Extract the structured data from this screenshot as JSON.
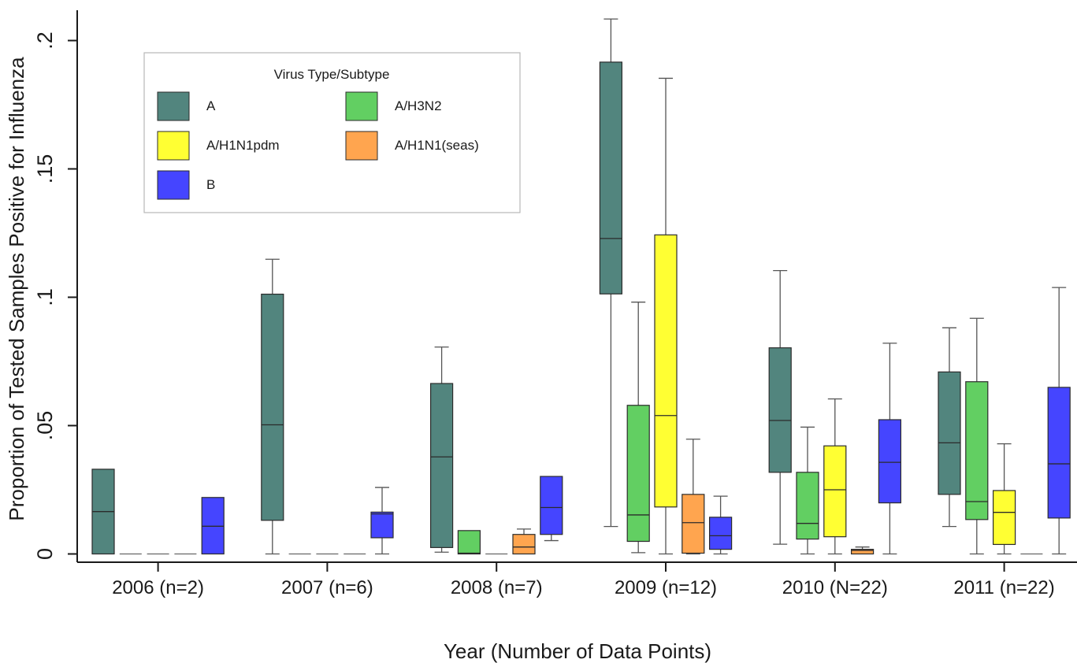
{
  "chart_data": {
    "type": "box",
    "xlabel": "Year (Number of Data Points)",
    "ylabel": "Proportion of Tested Samples Positive for Influenza",
    "ylim": [
      0,
      0.21
    ],
    "yticks": [
      0,
      0.05,
      0.1,
      0.15,
      0.2
    ],
    "ytick_labels": [
      "0",
      ".05",
      ".1",
      ".15",
      ".2"
    ],
    "grid": false,
    "legend": {
      "title": "Virus Type/Subtype",
      "placement": "top-left inside",
      "columns": 2
    },
    "categories": [
      "2006 (n=2)",
      "2007 (n=6)",
      "2008 (n=7)",
      "2009 (n=12)",
      "2010 (N=22)",
      "2011 (n=22)"
    ],
    "series": [
      {
        "name": "A",
        "color": "#52857e",
        "boxes": [
          {
            "low": 0,
            "q1": 0,
            "median": 0.0165,
            "q3": 0.033,
            "high": 0.033
          },
          {
            "low": 0,
            "q1": 0.0131,
            "median": 0.0503,
            "q3": 0.1012,
            "high": 0.1148
          },
          {
            "low": 0.0007,
            "q1": 0.0025,
            "median": 0.0378,
            "q3": 0.0664,
            "high": 0.0806
          },
          {
            "low": 0.0107,
            "q1": 0.1013,
            "median": 0.1229,
            "q3": 0.1916,
            "high": 0.2084
          },
          {
            "low": 0.0038,
            "q1": 0.0318,
            "median": 0.052,
            "q3": 0.0803,
            "high": 0.1104
          },
          {
            "low": 0.0107,
            "q1": 0.0232,
            "median": 0.0433,
            "q3": 0.0709,
            "high": 0.0881
          }
        ]
      },
      {
        "name": "A/H3N2",
        "color": "#62cf62",
        "boxes": [
          {
            "low": 0,
            "q1": 0,
            "median": 0,
            "q3": 0,
            "high": 0
          },
          {
            "low": 0,
            "q1": 0,
            "median": 0,
            "q3": 0,
            "high": 0
          },
          {
            "low": 0,
            "q1": 0,
            "median": 0.0003,
            "q3": 0.0091,
            "high": 0.0091
          },
          {
            "low": 0.0005,
            "q1": 0.0049,
            "median": 0.0152,
            "q3": 0.0579,
            "high": 0.0981
          },
          {
            "low": 0,
            "q1": 0.0058,
            "median": 0.0119,
            "q3": 0.0318,
            "high": 0.0494
          },
          {
            "low": 0,
            "q1": 0.0134,
            "median": 0.0204,
            "q3": 0.0671,
            "high": 0.0918
          }
        ]
      },
      {
        "name": "A/H1N1pdm",
        "color": "#ffff33",
        "boxes": [
          {
            "low": 0,
            "q1": 0,
            "median": 0,
            "q3": 0,
            "high": 0
          },
          {
            "low": 0,
            "q1": 0,
            "median": 0,
            "q3": 0,
            "high": 0
          },
          {
            "low": 0,
            "q1": 0,
            "median": 0,
            "q3": 0,
            "high": 0
          },
          {
            "low": 0,
            "q1": 0.0183,
            "median": 0.0539,
            "q3": 0.1243,
            "high": 0.1853
          },
          {
            "low": 0,
            "q1": 0.0067,
            "median": 0.025,
            "q3": 0.0421,
            "high": 0.0604
          },
          {
            "low": 0,
            "q1": 0.0037,
            "median": 0.0162,
            "q3": 0.0247,
            "high": 0.0429
          }
        ]
      },
      {
        "name": "A/H1N1(seas)",
        "color": "#ffa54f",
        "boxes": [
          {
            "low": 0,
            "q1": 0,
            "median": 0,
            "q3": 0,
            "high": 0
          },
          {
            "low": 0,
            "q1": 0,
            "median": 0,
            "q3": 0,
            "high": 0
          },
          {
            "low": 0,
            "q1": 0,
            "median": 0.0027,
            "q3": 0.0076,
            "high": 0.0097
          },
          {
            "low": 0,
            "q1": 0.0003,
            "median": 0.0122,
            "q3": 0.0232,
            "high": 0.0447
          },
          {
            "low": 0,
            "q1": 0,
            "median": 0.0014,
            "q3": 0.0018,
            "high": 0.0027
          },
          {
            "low": 0,
            "q1": 0,
            "median": 0,
            "q3": 0,
            "high": 0
          }
        ]
      },
      {
        "name": "B",
        "color": "#4545ff",
        "boxes": [
          {
            "low": 0,
            "q1": 0,
            "median": 0.0108,
            "q3": 0.022,
            "high": 0.022
          },
          {
            "low": 0,
            "q1": 0.0063,
            "median": 0.0156,
            "q3": 0.0163,
            "high": 0.0259
          },
          {
            "low": 0.0052,
            "q1": 0.0076,
            "median": 0.0181,
            "q3": 0.0302,
            "high": 0.0302
          },
          {
            "low": 0,
            "q1": 0.0018,
            "median": 0.0071,
            "q3": 0.0143,
            "high": 0.0225
          },
          {
            "low": 0,
            "q1": 0.0199,
            "median": 0.0357,
            "q3": 0.0523,
            "high": 0.0821
          },
          {
            "low": 0,
            "q1": 0.014,
            "median": 0.0351,
            "q3": 0.0649,
            "high": 0.1038
          }
        ]
      }
    ]
  }
}
